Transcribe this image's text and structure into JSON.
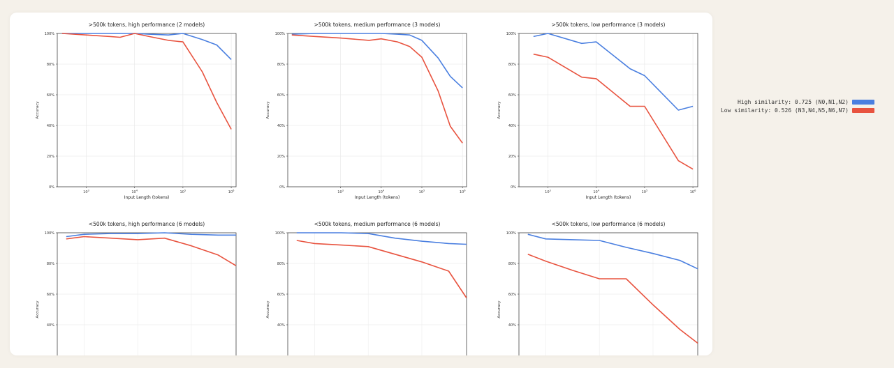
{
  "legend": {
    "items": [
      {
        "label": "High similarity: 0.725 (N0,N1,N2)",
        "color": "#4a7fe0"
      },
      {
        "label": "Low similarity: 0.526 (N3,N4,N5,N6,N7)",
        "color": "#e8533f"
      }
    ]
  },
  "chart_data": [
    {
      "type": "line",
      "title": ">500k tokens, high performance (2 models)",
      "xlabel": "Input Length (tokens)",
      "ylabel": "Accuracy",
      "xscale": "log",
      "xlim_log10": [
        2.4,
        6.1
      ],
      "ylim": [
        0,
        100
      ],
      "xticks": [
        {
          "base": "10",
          "exp": "3",
          "log": 3
        },
        {
          "base": "10",
          "exp": "4",
          "log": 4
        },
        {
          "base": "10",
          "exp": "5",
          "log": 5
        },
        {
          "base": "10",
          "exp": "6",
          "log": 6
        }
      ],
      "yticks": [
        "0%",
        "20%",
        "40%",
        "60%",
        "80%",
        "100%"
      ],
      "series": [
        {
          "name": "High similarity",
          "color": "#4a7fe0",
          "x_log10": [
            2.5,
            3.0,
            3.5,
            4.0,
            4.3,
            4.7,
            5.0,
            5.4,
            5.7,
            6.0
          ],
          "values": [
            100,
            100,
            100,
            100,
            99.5,
            99,
            100,
            96,
            92.5,
            83
          ]
        },
        {
          "name": "Low similarity",
          "color": "#e8533f",
          "x_log10": [
            2.5,
            3.0,
            3.5,
            3.7,
            4.0,
            4.3,
            4.7,
            5.0,
            5.4,
            5.7,
            6.0
          ],
          "values": [
            100,
            99,
            98,
            97.5,
            100,
            98,
            95.5,
            94.5,
            75,
            55,
            37.5
          ]
        }
      ]
    },
    {
      "type": "line",
      "title": ">500k tokens, medium performance (3 models)",
      "xlabel": "Input Length (tokens)",
      "ylabel": "Accuracy",
      "xscale": "log",
      "xlim_log10": [
        1.7,
        6.1
      ],
      "ylim": [
        0,
        100
      ],
      "xticks": [
        {
          "base": "10",
          "exp": "3",
          "log": 3
        },
        {
          "base": "10",
          "exp": "4",
          "log": 4
        },
        {
          "base": "10",
          "exp": "5",
          "log": 5
        },
        {
          "base": "10",
          "exp": "6",
          "log": 6
        }
      ],
      "yticks": [
        "0%",
        "20%",
        "40%",
        "60%",
        "80%",
        "100%"
      ],
      "series": [
        {
          "name": "High similarity",
          "color": "#4a7fe0",
          "x_log10": [
            1.8,
            2.4,
            3.0,
            3.7,
            4.0,
            4.4,
            4.7,
            5.0,
            5.4,
            5.7,
            6.0
          ],
          "values": [
            99.5,
            100,
            100,
            100,
            100,
            99.5,
            99,
            95.5,
            84,
            72,
            64.5
          ]
        },
        {
          "name": "Low similarity",
          "color": "#e8533f",
          "x_log10": [
            1.8,
            2.4,
            3.0,
            3.7,
            4.0,
            4.4,
            4.7,
            5.0,
            5.4,
            5.7,
            6.0
          ],
          "values": [
            99,
            98,
            97,
            95.5,
            96.5,
            94.5,
            91.5,
            84.5,
            62.5,
            39.5,
            28.5
          ]
        }
      ]
    },
    {
      "type": "line",
      "title": ">500k tokens, low performance (3 models)",
      "xlabel": "Input Length (tokens)",
      "ylabel": "Accuracy",
      "xscale": "log",
      "xlim_log10": [
        2.4,
        6.1
      ],
      "ylim": [
        0,
        100
      ],
      "xticks": [
        {
          "base": "10",
          "exp": "3",
          "log": 3
        },
        {
          "base": "10",
          "exp": "4",
          "log": 4
        },
        {
          "base": "10",
          "exp": "5",
          "log": 5
        },
        {
          "base": "10",
          "exp": "6",
          "log": 6
        }
      ],
      "yticks": [
        "0%",
        "20%",
        "40%",
        "60%",
        "80%",
        "100%"
      ],
      "series": [
        {
          "name": "High similarity",
          "color": "#4a7fe0",
          "x_log10": [
            2.7,
            3.0,
            3.7,
            4.0,
            4.7,
            5.0,
            5.7,
            6.0
          ],
          "values": [
            98,
            100,
            93.5,
            94.5,
            77,
            72.5,
            50,
            52.5
          ]
        },
        {
          "name": "Low similarity",
          "color": "#e8533f",
          "x_log10": [
            2.7,
            3.0,
            3.7,
            4.0,
            4.7,
            5.0,
            5.7,
            6.0
          ],
          "values": [
            86.5,
            84.5,
            71.5,
            70.5,
            52.5,
            52.5,
            17,
            11.5
          ]
        }
      ]
    },
    {
      "type": "line",
      "title": "<500k tokens, high performance (6 models)",
      "xlabel": "",
      "ylabel": "Accuracy",
      "xscale": "linear",
      "xlim": [
        0,
        10
      ],
      "ylim": [
        0,
        100
      ],
      "xticks": [],
      "yticks": [
        "40%",
        "60%",
        "80%",
        "100%"
      ],
      "series": [
        {
          "name": "High similarity",
          "color": "#4a7fe0",
          "x": [
            0.5,
            1.5,
            3,
            4.5,
            6,
            7.5,
            9,
            10
          ],
          "values": [
            97.5,
            99,
            99.5,
            99.5,
            100,
            99,
            98.5,
            98.5
          ]
        },
        {
          "name": "Low similarity",
          "color": "#e8533f",
          "x": [
            0.5,
            1.5,
            3,
            4.5,
            6,
            7.5,
            9,
            10
          ],
          "values": [
            96,
            97.5,
            96.5,
            95.5,
            96.5,
            91.5,
            85.5,
            78.5
          ]
        }
      ]
    },
    {
      "type": "line",
      "title": "<500k tokens, medium performance (6 models)",
      "xlabel": "",
      "ylabel": "Accuracy",
      "xscale": "linear",
      "xlim": [
        0,
        10
      ],
      "ylim": [
        0,
        100
      ],
      "xticks": [],
      "yticks": [
        "40%",
        "60%",
        "80%",
        "100%"
      ],
      "series": [
        {
          "name": "High similarity",
          "color": "#4a7fe0",
          "x": [
            0.5,
            1.5,
            3,
            4.5,
            6,
            7.5,
            9,
            10
          ],
          "values": [
            100,
            100,
            100,
            99.5,
            96.5,
            94.5,
            93,
            92.5
          ]
        },
        {
          "name": "Low similarity",
          "color": "#e8533f",
          "x": [
            0.5,
            1.5,
            3,
            4.5,
            6,
            7.5,
            9,
            10
          ],
          "values": [
            95,
            93,
            92,
            91,
            86,
            81,
            75,
            57.5
          ]
        }
      ]
    },
    {
      "type": "line",
      "title": "<500k tokens, low performance (6 models)",
      "xlabel": "",
      "ylabel": "Accuracy",
      "xscale": "linear",
      "xlim": [
        0,
        10
      ],
      "ylim": [
        0,
        100
      ],
      "xticks": [],
      "yticks": [
        "40%",
        "60%",
        "80%",
        "100%"
      ],
      "series": [
        {
          "name": "High similarity",
          "color": "#4a7fe0",
          "x": [
            0.5,
            1.5,
            3,
            4.5,
            6,
            7.5,
            9,
            10
          ],
          "values": [
            99,
            96,
            95.5,
            95,
            90.5,
            86.5,
            82,
            76.5
          ]
        },
        {
          "name": "Low similarity",
          "color": "#e8533f",
          "x": [
            0.5,
            1.5,
            3,
            4.5,
            6,
            7.5,
            9,
            10
          ],
          "values": [
            86,
            81.5,
            75.5,
            70,
            70,
            53,
            37,
            28
          ]
        }
      ]
    }
  ]
}
